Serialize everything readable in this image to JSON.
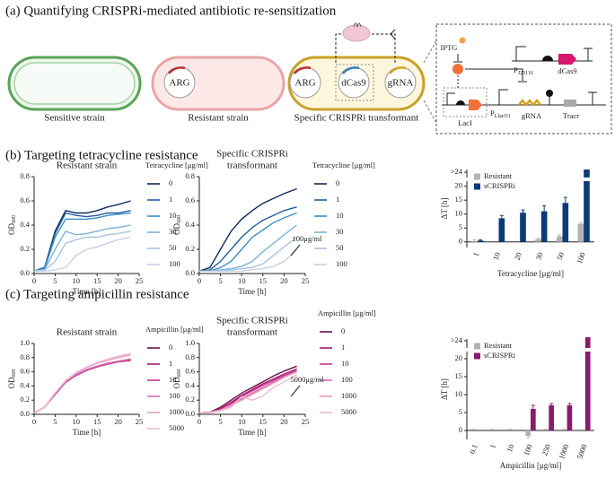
{
  "panel_a": {
    "title": "(a) Quantifying CRISPRi-mediated antibiotic re-sensitization",
    "cells": [
      "Sensitive strain",
      "Resistant strain",
      "Specific CRISPRi transformant"
    ],
    "plasmids": [
      "ARG",
      "ARG",
      "dCas9",
      "gRNA"
    ],
    "circuit": {
      "inducer": "IPTG",
      "promoter1": {
        "main": "P",
        "sub": "J23116"
      },
      "gene1": "dCas9",
      "repressor": "LacI",
      "promoter2": {
        "main": "P",
        "sub": "LlacO1"
      },
      "gene2": "gRNA",
      "gene3": "Tracr"
    }
  },
  "panel_b": {
    "title": "(b) Targeting tetracycline resistance"
  },
  "panel_c": {
    "title": "(c) Targeting ampicillin resistance"
  },
  "chart_data": [
    {
      "type": "line",
      "title_lines": [
        "Resistant strain"
      ],
      "xlabel": "Time [h]",
      "ylabel": "OD",
      "ylabel_sub": "600",
      "legend_title": "Tetracycline [μg/ml]",
      "x": [
        0,
        2.5,
        5,
        7.5,
        10,
        12.5,
        15,
        17.5,
        20,
        23
      ],
      "xlim": [
        0,
        25
      ],
      "xticks": [
        0,
        5,
        10,
        15,
        20,
        25
      ],
      "ylim": [
        0,
        0.8
      ],
      "yticks": [
        {
          "value": 0,
          "label": "0.0"
        },
        0.2,
        0.4,
        0.6,
        0.8
      ],
      "series": [
        {
          "name": "0",
          "color": "#0d2a5c",
          "values": [
            0.02,
            0.05,
            0.35,
            0.52,
            0.5,
            0.5,
            0.52,
            0.55,
            0.57,
            0.6
          ]
        },
        {
          "name": "1",
          "color": "#1f5fa0",
          "values": [
            0.02,
            0.05,
            0.33,
            0.5,
            0.48,
            0.47,
            0.48,
            0.5,
            0.5,
            0.52
          ]
        },
        {
          "name": "10",
          "color": "#3a8fc8",
          "values": [
            0.02,
            0.04,
            0.3,
            0.45,
            0.45,
            0.45,
            0.46,
            0.48,
            0.49,
            0.5
          ]
        },
        {
          "name": "30",
          "color": "#7ab3d8",
          "values": [
            0.02,
            0.03,
            0.2,
            0.35,
            0.32,
            0.33,
            0.35,
            0.37,
            0.38,
            0.4
          ]
        },
        {
          "name": "50",
          "color": "#a9c4e0",
          "values": [
            0.02,
            0.03,
            0.1,
            0.25,
            0.28,
            0.3,
            0.3,
            0.32,
            0.33,
            0.35
          ]
        },
        {
          "name": "100",
          "color": "#c9cfe8",
          "values": [
            0.02,
            0.02,
            0.03,
            0.05,
            0.15,
            0.2,
            0.22,
            0.25,
            0.28,
            0.3
          ]
        }
      ]
    },
    {
      "type": "line",
      "title_lines": [
        "Specific CRISPRi",
        "transformant"
      ],
      "xlabel": "Time [h]",
      "ylabel": "OD",
      "ylabel_sub": "600",
      "legend_title": "Tetracycline [μg/ml]",
      "annotation": "100μg/ml",
      "x": [
        0,
        2.5,
        5,
        7.5,
        10,
        12.5,
        15,
        17.5,
        20,
        23
      ],
      "xlim": [
        0,
        25
      ],
      "xticks": [
        0,
        5,
        10,
        15,
        20,
        25
      ],
      "ylim": [
        0,
        0.8
      ],
      "yticks": [
        {
          "value": 0,
          "label": "0.0"
        },
        0.2,
        0.4,
        0.6,
        0.8
      ],
      "series": [
        {
          "name": "0",
          "color": "#0d2a5c",
          "values": [
            0.02,
            0.05,
            0.2,
            0.35,
            0.45,
            0.52,
            0.58,
            0.62,
            0.66,
            0.7
          ]
        },
        {
          "name": "1",
          "color": "#1f5fa0",
          "values": [
            0.02,
            0.03,
            0.1,
            0.2,
            0.3,
            0.38,
            0.44,
            0.48,
            0.52,
            0.55
          ]
        },
        {
          "name": "10",
          "color": "#3a8fc8",
          "values": [
            0.02,
            0.02,
            0.05,
            0.1,
            0.2,
            0.3,
            0.36,
            0.42,
            0.46,
            0.5
          ]
        },
        {
          "name": "30",
          "color": "#7ab3d8",
          "values": [
            0.02,
            0.02,
            0.03,
            0.04,
            0.06,
            0.1,
            0.18,
            0.25,
            0.32,
            0.4
          ]
        },
        {
          "name": "50",
          "color": "#a9c4e0",
          "values": [
            0.02,
            0.02,
            0.02,
            0.03,
            0.04,
            0.05,
            0.08,
            0.15,
            0.22,
            0.3
          ]
        },
        {
          "name": "100",
          "color": "#c9cfe8",
          "values": [
            0.02,
            0.02,
            0.02,
            0.02,
            0.02,
            0.03,
            0.04,
            0.06,
            0.1,
            0.2
          ]
        }
      ]
    },
    {
      "type": "bar",
      "xlabel": "Tetracycline [μg/ml]",
      "ylabel": "ΔT [h]",
      "legend": "upper left",
      "categories": [
        "1",
        "10",
        "20",
        "30",
        "50",
        "100"
      ],
      "ylim": [
        -2,
        26
      ],
      "yticks": [
        0,
        5,
        10,
        15,
        20,
        {
          "value": 25,
          "label": ">24"
        }
      ],
      "series": [
        {
          "name": "Resistant",
          "color": "#b3b3b3",
          "values": [
            0.3,
            0,
            0,
            1,
            2,
            6.5
          ],
          "errors": [
            0.5,
            0,
            0,
            0.3,
            0.5,
            0.5
          ]
        },
        {
          "name": "sCRISPRi",
          "color": "#0d3b78",
          "values": [
            0.5,
            8.5,
            10.5,
            11,
            14,
            26
          ],
          "errors": [
            0.3,
            1,
            1,
            2,
            2,
            0
          ]
        }
      ]
    },
    {
      "type": "line",
      "title_lines": [
        "Resistant strain"
      ],
      "xlabel": "Time [h]",
      "ylabel": "OD",
      "ylabel_sub": "600",
      "legend_title": "Ampicillin [μg/ml]",
      "x": [
        0,
        2.5,
        5,
        7.5,
        10,
        12.5,
        15,
        17.5,
        20,
        23
      ],
      "xlim": [
        0,
        25
      ],
      "xticks": [
        0,
        5,
        10,
        15,
        20,
        25
      ],
      "ylim": [
        0,
        1.0
      ],
      "yticks": [
        {
          "value": 0,
          "label": "0.0"
        },
        0.2,
        0.4,
        0.6,
        0.8,
        {
          "value": 1,
          "label": "1.0"
        }
      ],
      "series": [
        {
          "name": "0",
          "color": "#6b0f4a",
          "values": [
            0.02,
            0.1,
            0.3,
            0.45,
            0.55,
            0.62,
            0.67,
            0.71,
            0.74,
            0.77
          ]
        },
        {
          "name": "1",
          "color": "#a0196e",
          "values": [
            0.02,
            0.1,
            0.3,
            0.47,
            0.56,
            0.63,
            0.68,
            0.72,
            0.75,
            0.78
          ]
        },
        {
          "name": "10",
          "color": "#c8338f",
          "values": [
            0.02,
            0.1,
            0.28,
            0.45,
            0.55,
            0.62,
            0.67,
            0.71,
            0.74,
            0.76
          ]
        },
        {
          "name": "100",
          "color": "#d96aa9",
          "values": [
            0.02,
            0.1,
            0.3,
            0.46,
            0.56,
            0.63,
            0.68,
            0.72,
            0.75,
            0.78
          ]
        },
        {
          "name": "1000",
          "color": "#e39cc5",
          "values": [
            0.02,
            0.1,
            0.3,
            0.47,
            0.58,
            0.66,
            0.72,
            0.76,
            0.8,
            0.84
          ]
        },
        {
          "name": "5000",
          "color": "#eab9d6",
          "values": [
            0.02,
            0.1,
            0.3,
            0.48,
            0.59,
            0.67,
            0.73,
            0.78,
            0.82,
            0.86
          ]
        }
      ]
    },
    {
      "type": "line",
      "title_lines": [
        "Specific CRISPRi",
        "transformant"
      ],
      "xlabel": "Time [h]",
      "ylabel": "OD",
      "ylabel_sub": "600",
      "legend_title": "Ampicillin [μg/ml]",
      "annotation": "5000μg/ml",
      "x": [
        0,
        2.5,
        5,
        7.5,
        10,
        12.5,
        15,
        17.5,
        20,
        23
      ],
      "xlim": [
        0,
        25
      ],
      "xticks": [
        0,
        5,
        10,
        15,
        20,
        25
      ],
      "ylim": [
        0,
        1.0
      ],
      "yticks": [
        {
          "value": 0,
          "label": "0.0"
        },
        0.2,
        0.4,
        0.6,
        0.8,
        {
          "value": 1,
          "label": "1.0"
        }
      ],
      "series": [
        {
          "name": "0",
          "color": "#6b0f4a",
          "values": [
            0.02,
            0.03,
            0.1,
            0.2,
            0.3,
            0.38,
            0.46,
            0.54,
            0.61,
            0.68
          ]
        },
        {
          "name": "1",
          "color": "#a0196e",
          "values": [
            0.02,
            0.03,
            0.08,
            0.17,
            0.27,
            0.35,
            0.43,
            0.5,
            0.57,
            0.64
          ]
        },
        {
          "name": "10",
          "color": "#c8338f",
          "values": [
            0.02,
            0.03,
            0.07,
            0.15,
            0.25,
            0.33,
            0.41,
            0.48,
            0.55,
            0.62
          ]
        },
        {
          "name": "100",
          "color": "#d96aa9",
          "values": [
            0.02,
            0.03,
            0.06,
            0.14,
            0.22,
            0.3,
            0.38,
            0.46,
            0.53,
            0.6
          ]
        },
        {
          "name": "1000",
          "color": "#e39cc5",
          "values": [
            0.02,
            0.03,
            0.06,
            0.12,
            0.2,
            0.28,
            0.36,
            0.44,
            0.52,
            0.6
          ]
        },
        {
          "name": "5000",
          "color": "#eab9d6",
          "values": [
            0.02,
            0.02,
            0.05,
            0.1,
            0.25,
            0.2,
            0.26,
            0.38,
            0.46,
            0.56
          ]
        }
      ]
    },
    {
      "type": "bar",
      "xlabel": "Ampicillin [μg/ml]",
      "ylabel": "ΔT [h]",
      "legend": "upper left",
      "categories": [
        "0.1",
        "1",
        "10",
        "100",
        "250",
        "1000",
        "5000"
      ],
      "ylim": [
        -2.5,
        25.5
      ],
      "yticks": [
        0,
        5,
        10,
        15,
        20,
        {
          "value": 25,
          "label": ">24"
        }
      ],
      "series": [
        {
          "name": "Resistant",
          "color": "#b3b3b3",
          "values": [
            0,
            0,
            0,
            -1.5,
            0,
            0,
            0
          ],
          "errors": [
            0.3,
            0.3,
            0.3,
            0.5,
            0.3,
            0.3,
            0
          ]
        },
        {
          "name": "sCRISPRi",
          "color": "#8a1a6e",
          "values": [
            0,
            0,
            0,
            6,
            7,
            7,
            26
          ],
          "errors": [
            0,
            0,
            0,
            1,
            0.5,
            0.5,
            0
          ]
        }
      ]
    }
  ]
}
